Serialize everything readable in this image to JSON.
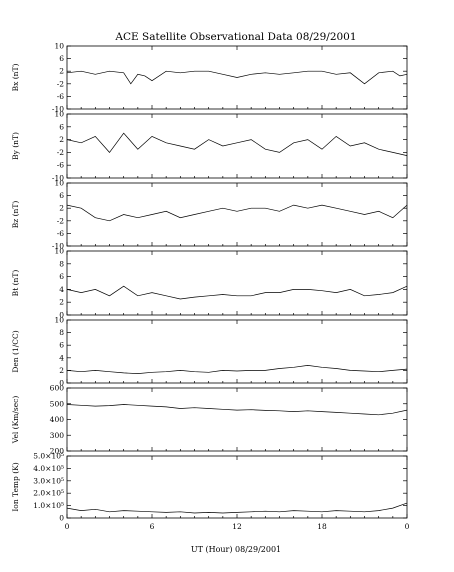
{
  "chart_data": {
    "type": "line",
    "title": "ACE Satellite Observational Data   08/29/2001",
    "xlabel": "UT (Hour)  08/29/2001",
    "x_ticks": [
      "0",
      "6",
      "12",
      "18",
      "0"
    ],
    "xlim": [
      0,
      24
    ],
    "grid": false,
    "panels": [
      {
        "ylabel": "Bx (nT)",
        "ylim": [
          -10,
          10
        ],
        "yticks": [
          "10",
          "6",
          "2",
          "-2",
          "-6",
          "-10"
        ],
        "x": [
          0,
          1,
          2,
          3,
          4,
          4.5,
          5,
          5.5,
          6,
          7,
          8,
          9,
          10,
          11,
          12,
          13,
          14,
          15,
          16,
          17,
          18,
          19,
          20,
          21,
          22,
          23,
          23.5,
          24
        ],
        "values": [
          1.5,
          2,
          1,
          2,
          1.5,
          -2,
          1,
          0.5,
          -1,
          2,
          1.5,
          2,
          2,
          1,
          0,
          1,
          1.5,
          1,
          1.5,
          2,
          2,
          1,
          1.5,
          -2,
          1.5,
          2,
          0.5,
          1
        ]
      },
      {
        "ylabel": "By (nT)",
        "ylim": [
          -10,
          10
        ],
        "yticks": [
          "10",
          "6",
          "2",
          "-2",
          "-6",
          "-10"
        ],
        "x": [
          0,
          1,
          2,
          3,
          4,
          5,
          6,
          7,
          8,
          9,
          10,
          11,
          12,
          13,
          14,
          15,
          16,
          17,
          18,
          19,
          20,
          21,
          22,
          23,
          24
        ],
        "values": [
          2,
          1,
          3,
          -2,
          4,
          -1,
          3,
          1,
          0,
          -1,
          2,
          0,
          1,
          2,
          -1,
          -2,
          1,
          2,
          -1,
          3,
          0,
          1,
          -1,
          -2,
          -3
        ]
      },
      {
        "ylabel": "Bz (nT)",
        "ylim": [
          -10,
          10
        ],
        "yticks": [
          "10",
          "6",
          "2",
          "-2",
          "-6",
          "-10"
        ],
        "x": [
          0,
          1,
          2,
          3,
          4,
          5,
          6,
          7,
          8,
          9,
          10,
          11,
          12,
          13,
          14,
          15,
          16,
          17,
          18,
          19,
          20,
          21,
          22,
          23,
          24
        ],
        "values": [
          3,
          2,
          -1,
          -2,
          0,
          -1,
          0,
          1,
          -1,
          0,
          1,
          2,
          1,
          2,
          2,
          1,
          3,
          2,
          3,
          2,
          1,
          0,
          1,
          -1,
          3
        ]
      },
      {
        "ylabel": "Bt (nT)",
        "ylim": [
          0,
          10
        ],
        "yticks": [
          "10",
          "8",
          "6",
          "4",
          "2",
          "0"
        ],
        "x": [
          0,
          1,
          2,
          3,
          4,
          5,
          6,
          7,
          8,
          9,
          10,
          11,
          12,
          13,
          14,
          15,
          16,
          17,
          18,
          19,
          20,
          21,
          22,
          23,
          24
        ],
        "values": [
          4,
          3.5,
          4,
          3,
          4.5,
          3,
          3.5,
          3,
          2.5,
          2.8,
          3,
          3.2,
          3,
          3,
          3.5,
          3.5,
          4,
          4,
          3.8,
          3.5,
          4,
          3,
          3.2,
          3.5,
          4.5
        ]
      },
      {
        "ylabel": "Den (1/CC)",
        "ylim": [
          0,
          10
        ],
        "yticks": [
          "10",
          "8",
          "6",
          "4",
          "2",
          "0"
        ],
        "x": [
          0,
          1,
          2,
          3,
          4,
          5,
          6,
          7,
          8,
          9,
          10,
          11,
          12,
          13,
          14,
          15,
          16,
          17,
          18,
          19,
          20,
          21,
          22,
          23,
          24
        ],
        "values": [
          2,
          1.8,
          2,
          1.8,
          1.6,
          1.5,
          1.7,
          1.8,
          2,
          1.8,
          1.7,
          2,
          1.9,
          2,
          2,
          2.3,
          2.5,
          2.8,
          2.5,
          2.3,
          2,
          1.9,
          1.8,
          2,
          2.2
        ]
      },
      {
        "ylabel": "Vel (Km/sec)",
        "ylim": [
          200,
          600
        ],
        "yticks": [
          "600",
          "500",
          "400",
          "300",
          "200"
        ],
        "x": [
          0,
          1,
          2,
          3,
          4,
          5,
          6,
          7,
          8,
          9,
          10,
          11,
          12,
          13,
          14,
          15,
          16,
          17,
          18,
          19,
          20,
          21,
          22,
          23,
          24
        ],
        "values": [
          495,
          490,
          485,
          488,
          495,
          490,
          485,
          480,
          470,
          475,
          470,
          465,
          460,
          462,
          458,
          455,
          450,
          455,
          450,
          445,
          440,
          435,
          430,
          440,
          460
        ]
      },
      {
        "ylabel": "Ion Temp (K)",
        "ylim": [
          0,
          500000
        ],
        "yticks": [
          "5.0×10⁵",
          "4.0×10⁵",
          "3.0×10⁵",
          "2.0×10⁵",
          "1.0×10⁵",
          "0"
        ],
        "x": [
          0,
          1,
          2,
          3,
          4,
          5,
          6,
          7,
          8,
          9,
          10,
          11,
          12,
          13,
          14,
          15,
          16,
          17,
          18,
          19,
          20,
          21,
          22,
          23,
          24
        ],
        "values": [
          80000,
          60000,
          70000,
          50000,
          60000,
          55000,
          50000,
          45000,
          50000,
          40000,
          45000,
          40000,
          45000,
          50000,
          55000,
          50000,
          60000,
          55000,
          50000,
          60000,
          55000,
          50000,
          60000,
          80000,
          120000
        ]
      }
    ]
  }
}
